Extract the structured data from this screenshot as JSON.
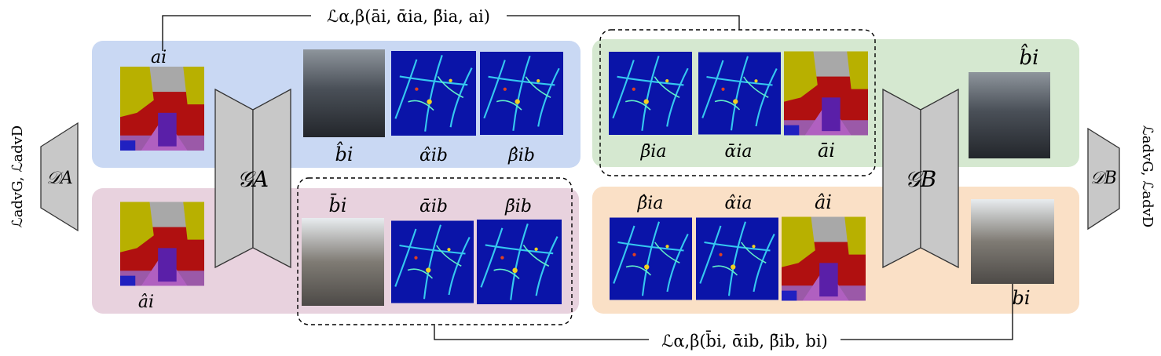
{
  "loss_top": "ℒα,β(āi, ᾱia, β̄ia, ai)",
  "loss_bottom": "ℒα,β(b̄i, ᾱib, β̄ib, bi)",
  "left_adv_label": "ℒadvG, ℒadvD",
  "right_adv_label": "ℒadvG, ℒadvD",
  "generators": {
    "a": "𝒢A",
    "b": "𝒢B"
  },
  "discriminators": {
    "a": "𝒟A",
    "b": "𝒟B"
  },
  "labels": {
    "a_i": "ai",
    "a_hat_i_left": "âi",
    "b_hat_i_top": "b̂i",
    "alpha_hat_b": "α̂ib",
    "beta_hat_b": "β̂ib",
    "b_bar_i": "b̄i",
    "alpha_bar_b": "ᾱib",
    "beta_bar_b": "β̄ib",
    "beta_bar_a": "β̄ia",
    "alpha_bar_a": "ᾱia",
    "a_bar_i": "āi",
    "b_hat_i_right": "b̂i",
    "beta_hat_a": "β̂ia",
    "alpha_hat_a": "α̂ia",
    "a_hat_i_right": "âi",
    "b_i": "bi"
  },
  "colors": {
    "blue_panel": "#c9d8f3",
    "pink_panel": "#e8d2de",
    "green_panel": "#d5e8d0",
    "orange_panel": "#fae0c6",
    "network_gray": "#c8c8c8",
    "heatmap_bg": "#0a14a8"
  }
}
